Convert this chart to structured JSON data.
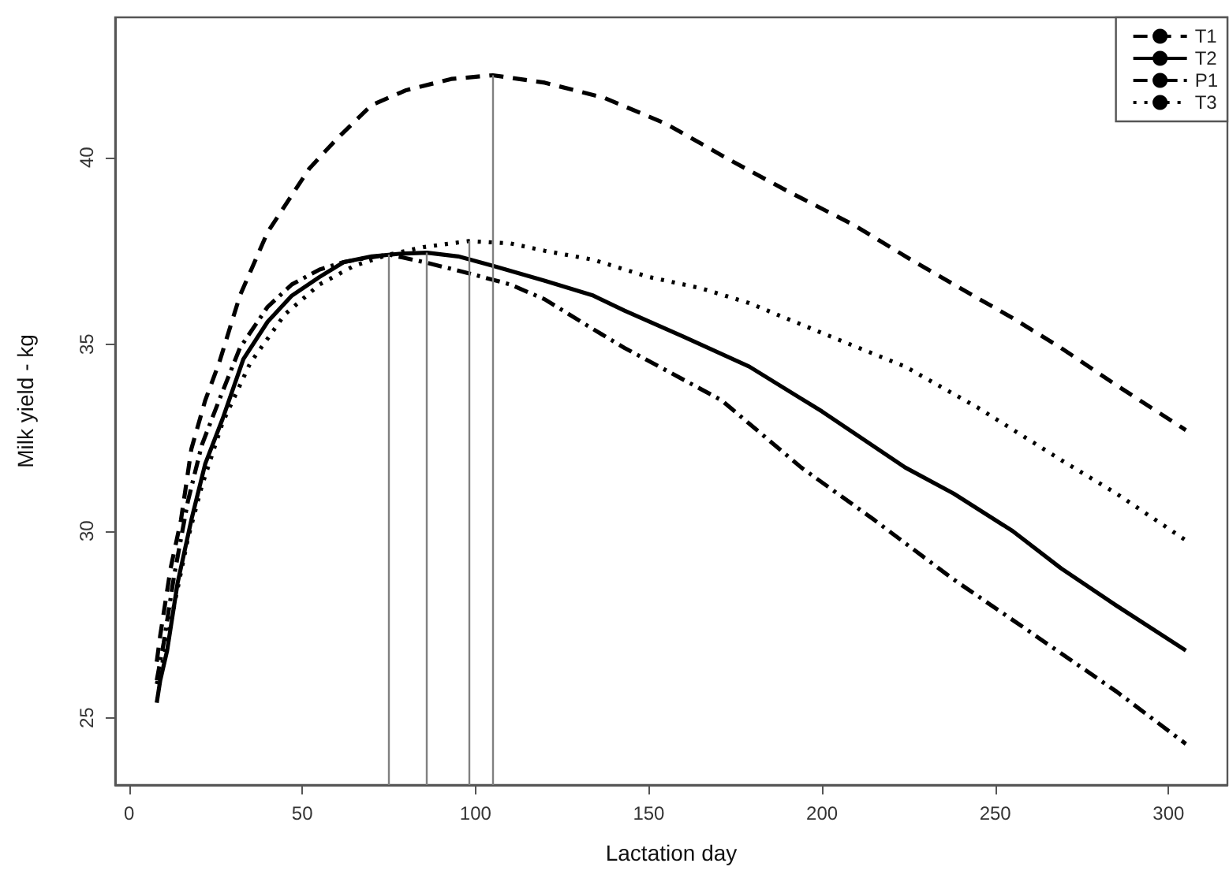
{
  "chart_data": {
    "type": "line",
    "xlabel": "Lactation day",
    "ylabel": "Milk yield - kg",
    "xlim": [
      -4,
      317
    ],
    "xticks": [
      0,
      50,
      100,
      150,
      200,
      250,
      300
    ],
    "ylim": [
      23.2,
      43.75
    ],
    "yticks": [
      25,
      30,
      35,
      40
    ],
    "grid": false,
    "legend": "top right",
    "marker": "none",
    "series": [
      {
        "name": "T1",
        "color": "#000000",
        "line_style": "dashed",
        "x": [
          8,
          9,
          12,
          15,
          18,
          22,
          26,
          32,
          40,
          52,
          60,
          70,
          80,
          93,
          105,
          120,
          137,
          155,
          174,
          190,
          209,
          225,
          238,
          255,
          269,
          285,
          305
        ],
        "values": [
          26.5,
          27.2,
          29.0,
          30.3,
          32.2,
          33.5,
          34.5,
          36.3,
          38.0,
          39.7,
          40.5,
          41.4,
          41.8,
          42.1,
          42.2,
          42.0,
          41.6,
          40.9,
          39.9,
          39.1,
          38.2,
          37.3,
          36.6,
          35.7,
          34.9,
          33.9,
          32.7
        ]
      },
      {
        "name": "T2",
        "color": "#000000",
        "line_style": "solid",
        "x": [
          8,
          9,
          11,
          14,
          18,
          22,
          27,
          33,
          40,
          47,
          55,
          62,
          70,
          78,
          86,
          95,
          105,
          120,
          134,
          143,
          160,
          179,
          200,
          224,
          238,
          255,
          269,
          285,
          305
        ],
        "values": [
          25.4,
          26.0,
          26.8,
          28.6,
          30.3,
          31.8,
          33.0,
          34.6,
          35.6,
          36.3,
          36.8,
          37.2,
          37.35,
          37.42,
          37.45,
          37.35,
          37.1,
          36.7,
          36.3,
          35.9,
          35.2,
          34.4,
          33.2,
          31.7,
          31.0,
          30.0,
          29.0,
          28.0,
          26.8
        ]
      },
      {
        "name": "P1",
        "color": "#000000",
        "line_style": "dashdot",
        "x": [
          8,
          10,
          13,
          17,
          21,
          26,
          32,
          40,
          47,
          55,
          62,
          68,
          75,
          85,
          98,
          110,
          120,
          134,
          143,
          155,
          171,
          194,
          215,
          238,
          260,
          285,
          305
        ],
        "values": [
          26.0,
          27.0,
          28.8,
          30.8,
          32.3,
          33.5,
          34.9,
          36.0,
          36.6,
          37.0,
          37.2,
          37.3,
          37.4,
          37.2,
          36.9,
          36.6,
          36.2,
          35.4,
          34.9,
          34.3,
          33.5,
          31.7,
          30.3,
          28.7,
          27.3,
          25.7,
          24.3
        ]
      },
      {
        "name": "T3",
        "color": "#000000",
        "line_style": "dotted",
        "x": [
          8,
          10,
          13,
          17,
          21,
          27,
          35,
          45,
          55,
          65,
          75,
          85,
          98,
          110,
          120,
          134,
          150,
          165,
          179,
          200,
          224,
          245,
          269,
          285,
          305
        ],
        "values": [
          25.9,
          26.6,
          28.0,
          29.8,
          31.2,
          32.9,
          34.5,
          35.8,
          36.6,
          37.1,
          37.4,
          37.6,
          37.76,
          37.7,
          37.5,
          37.26,
          36.8,
          36.5,
          36.1,
          35.3,
          34.4,
          33.3,
          31.9,
          31.0,
          29.75
        ]
      }
    ],
    "ref_lines": [
      {
        "axis": "x",
        "value": 75,
        "color": "#808080"
      },
      {
        "axis": "x",
        "value": 86,
        "color": "#808080"
      },
      {
        "axis": "x",
        "value": 98,
        "color": "#808080"
      },
      {
        "axis": "x",
        "value": 105,
        "color": "#808080"
      }
    ]
  }
}
